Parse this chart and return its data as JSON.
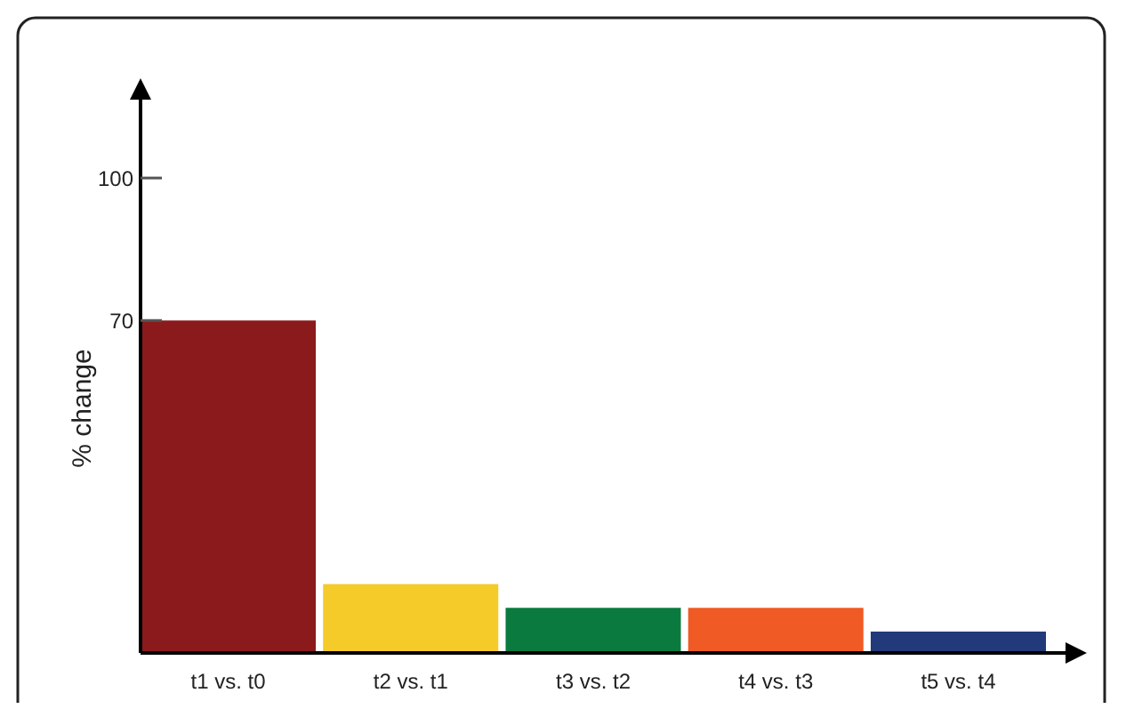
{
  "chart_data": {
    "type": "bar",
    "ylabel": "% change",
    "categories": [
      "t1 vs. t0",
      "t2 vs. t1",
      "t3 vs. t2",
      "t4 vs. t3",
      "t5 vs. t4"
    ],
    "values": [
      70,
      14.5,
      9.5,
      9.5,
      4.5
    ],
    "colors": [
      "#8b1a1c",
      "#f5cb2a",
      "#0b7a3e",
      "#f05a24",
      "#223a7a"
    ],
    "ylim": [
      0,
      118
    ],
    "yticks": [
      70,
      100
    ],
    "grid": false
  }
}
